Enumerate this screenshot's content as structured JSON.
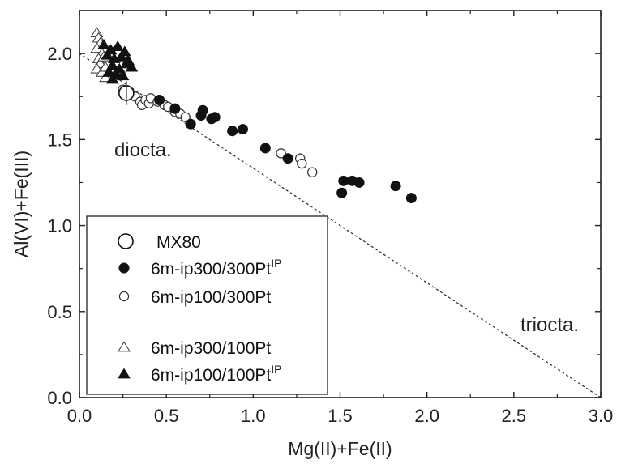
{
  "chart_data": {
    "type": "scatter",
    "title": "",
    "xlabel": "Mg(II)+Fe(II)",
    "ylabel": "Al(VI)+Fe(III)",
    "xlim": [
      0,
      3
    ],
    "ylim": [
      0,
      2.25
    ],
    "xticks": [
      0,
      0.5,
      1,
      1.5,
      2,
      2.5,
      3
    ],
    "xtick_labels": [
      "0.0",
      "0.5",
      "1.0",
      "1.5",
      "2.0",
      "2.5",
      "3.0"
    ],
    "yticks": [
      0,
      0.5,
      1,
      1.5,
      2
    ],
    "ytick_labels": [
      "0.0",
      "0.5",
      "1.0",
      "1.5",
      "2.0"
    ],
    "grid": false,
    "legend_position": "bottom-left",
    "reference_line": {
      "style": "dotted",
      "from": [
        0,
        2
      ],
      "to": [
        3,
        0
      ]
    },
    "annotations": [
      {
        "text": "diocta.",
        "x": 0.2,
        "y": 1.47
      },
      {
        "text": "triocta.",
        "x": 2.55,
        "y": 0.4
      }
    ],
    "series": [
      {
        "name": "MX80",
        "sup": "",
        "marker": "open-circle-large",
        "points": [
          [
            0.27,
            1.77
          ]
        ],
        "error_bars": [
          [
            0.27,
            1.7,
            1.84
          ]
        ]
      },
      {
        "name": "6m-ip300/300Pt",
        "sup": "IP",
        "marker": "filled-circle",
        "points": [
          [
            0.46,
            1.73
          ],
          [
            0.55,
            1.68
          ],
          [
            0.64,
            1.59
          ],
          [
            0.7,
            1.64
          ],
          [
            0.71,
            1.67
          ],
          [
            0.76,
            1.62
          ],
          [
            0.78,
            1.63
          ],
          [
            0.88,
            1.55
          ],
          [
            0.94,
            1.56
          ],
          [
            1.07,
            1.45
          ],
          [
            1.2,
            1.39
          ],
          [
            1.51,
            1.19
          ],
          [
            1.52,
            1.26
          ],
          [
            1.57,
            1.26
          ],
          [
            1.61,
            1.25
          ],
          [
            1.82,
            1.23
          ],
          [
            1.91,
            1.16
          ]
        ]
      },
      {
        "name": "6m-ip100/300Pt",
        "sup": "",
        "marker": "open-circle",
        "points": [
          [
            0.25,
            1.79
          ],
          [
            0.29,
            1.77
          ],
          [
            0.32,
            1.75
          ],
          [
            0.35,
            1.72
          ],
          [
            0.36,
            1.7
          ],
          [
            0.38,
            1.73
          ],
          [
            0.4,
            1.71
          ],
          [
            0.41,
            1.74
          ],
          [
            0.45,
            1.72
          ],
          [
            0.49,
            1.7
          ],
          [
            0.51,
            1.69
          ],
          [
            0.55,
            1.66
          ],
          [
            0.58,
            1.65
          ],
          [
            0.61,
            1.63
          ],
          [
            1.16,
            1.42
          ],
          [
            1.27,
            1.39
          ],
          [
            1.28,
            1.36
          ],
          [
            1.34,
            1.31
          ]
        ]
      },
      {
        "name": "6m-ip300/100Pt",
        "sup": "",
        "marker": "open-triangle",
        "points": [
          [
            0.1,
            2.12
          ],
          [
            0.11,
            2.09
          ],
          [
            0.12,
            2.06
          ],
          [
            0.1,
            2.03
          ],
          [
            0.13,
            2.0
          ],
          [
            0.11,
            1.97
          ],
          [
            0.12,
            1.94
          ],
          [
            0.1,
            1.91
          ],
          [
            0.13,
            1.89
          ],
          [
            0.15,
            1.86
          ],
          [
            0.14,
            1.98
          ],
          [
            0.15,
            1.92
          ]
        ]
      },
      {
        "name": "6m-ip100/100Pt",
        "sup": "IP",
        "marker": "filled-triangle",
        "points": [
          [
            0.14,
            2.05
          ],
          [
            0.16,
            1.99
          ],
          [
            0.18,
            2.02
          ],
          [
            0.2,
            1.97
          ],
          [
            0.22,
            2.04
          ],
          [
            0.19,
            1.93
          ],
          [
            0.17,
            1.89
          ],
          [
            0.24,
            1.98
          ],
          [
            0.26,
            2.01
          ],
          [
            0.21,
            1.88
          ],
          [
            0.23,
            1.91
          ],
          [
            0.28,
            1.96
          ],
          [
            0.3,
            1.92
          ],
          [
            0.25,
            1.87
          ],
          [
            0.27,
            1.94
          ],
          [
            0.19,
            1.85
          ]
        ]
      }
    ]
  }
}
